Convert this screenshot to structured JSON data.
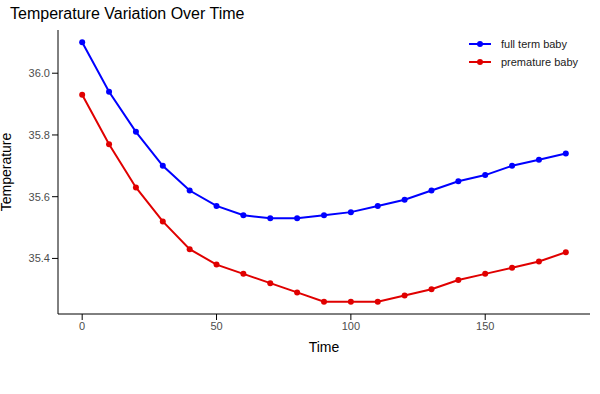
{
  "chart_data": {
    "type": "line",
    "title": "Temperature Variation Over Time",
    "x_label": "Time",
    "y_label": "Temperature",
    "x": [
      0,
      10,
      20,
      30,
      40,
      50,
      60,
      70,
      80,
      90,
      100,
      110,
      120,
      130,
      140,
      150,
      160,
      170,
      180
    ],
    "series": [
      {
        "name": "full term baby",
        "color": "#0000ff",
        "marker": "circle",
        "values": [
          36.1,
          35.94,
          35.81,
          35.7,
          35.62,
          35.57,
          35.54,
          35.53,
          35.53,
          35.54,
          35.55,
          35.57,
          35.59,
          35.62,
          35.65,
          35.67,
          35.7,
          35.72,
          35.74
        ]
      },
      {
        "name": "premature baby",
        "color": "#e00000",
        "marker": "circle",
        "values": [
          35.93,
          35.77,
          35.63,
          35.52,
          35.43,
          35.38,
          35.35,
          35.32,
          35.29,
          35.26,
          35.26,
          35.26,
          35.28,
          35.3,
          35.33,
          35.35,
          35.37,
          35.39,
          35.42
        ]
      }
    ],
    "xlim": [
      -9,
      189
    ],
    "xticks": [
      0,
      50,
      100,
      150
    ],
    "ylim": [
      35.22,
      36.14
    ],
    "yticks": [
      35.4,
      35.6,
      35.8,
      {
        "value": 36,
        "label": "36.0"
      }
    ],
    "grid": false,
    "legend": "topright"
  }
}
